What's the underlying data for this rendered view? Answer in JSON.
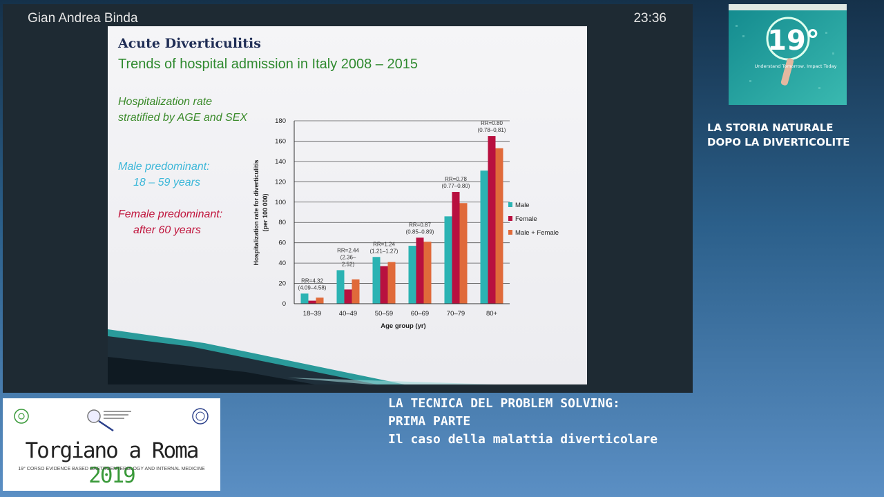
{
  "video": {
    "speaker": "Gian Andrea Binda",
    "timestamp": "23:36"
  },
  "slide": {
    "title": "Acute Diverticulitis",
    "subtitle": "Trends of hospital admission in Italy 2008 – 2015",
    "note1_line1": "Hospitalization rate",
    "note1_line2": "stratified by AGE and SEX",
    "note2_line1": "Male predominant:",
    "note2_line2": "18 – 59 years",
    "note3_line1": "Female predominant:",
    "note3_line2": "after 60 years"
  },
  "chart_data": {
    "type": "bar",
    "categories": [
      "18–39",
      "40–49",
      "50–59",
      "60–69",
      "70–79",
      "80+"
    ],
    "series": [
      {
        "name": "Male",
        "color": "#2bb3b3",
        "values": [
          10,
          33,
          46,
          57,
          86,
          131
        ]
      },
      {
        "name": "Female",
        "color": "#b8103f",
        "values": [
          3,
          14,
          37,
          65,
          110,
          165
        ]
      },
      {
        "name": "Male + Female",
        "color": "#e06a3a",
        "values": [
          6,
          24,
          41,
          61,
          99,
          153
        ]
      }
    ],
    "annotations": [
      {
        "line1": "RR=4.32",
        "line2": "(4.09–4.58)"
      },
      {
        "line1": "RR=2.44",
        "line2": "(2.36–",
        "line3": "2.52)"
      },
      {
        "line1": "RR=1.24",
        "line2": "(1.21–1.27)"
      },
      {
        "line1": "RR=0.87",
        "line2": "(0.85–0.89)"
      },
      {
        "line1": "RR=0.78",
        "line2": "(0.77–0.80)"
      },
      {
        "line1": "RR=0.80",
        "line2": "(0.78–0,81)"
      }
    ],
    "ylabel_line1": "Hospitalization rate for diverticulitis",
    "ylabel_line2": "(per 100 000)",
    "xlabel": "Age group (yr)",
    "ylim": [
      0,
      180
    ],
    "yticks": [
      0,
      20,
      40,
      60,
      80,
      100,
      120,
      140,
      160,
      180
    ],
    "grid": true,
    "legend_position": "right"
  },
  "sidebar": {
    "thumb_badge": "19°",
    "thumb_tagline": "Understand Tomorrow, Impact Today",
    "title_line1": "LA STORIA NATURALE",
    "title_line2": "DOPO LA DIVERTICOLITE"
  },
  "logo": {
    "main": "Torgiano a Roma",
    "year": "2019",
    "subtitle": "19° CORSO EVIDENCE BASED GASTROENTEROLOGY AND INTERNAL MEDICINE"
  },
  "talk": {
    "line1": "LA TECNICA DEL PROBLEM SOLVING:",
    "line2": "PRIMA PARTE",
    "line3": "Il caso della malattia diverticolare"
  },
  "colors": {
    "male": "#2bb3b3",
    "female": "#b8103f",
    "both": "#e06a3a",
    "accent_green": "#3a8a2a"
  }
}
